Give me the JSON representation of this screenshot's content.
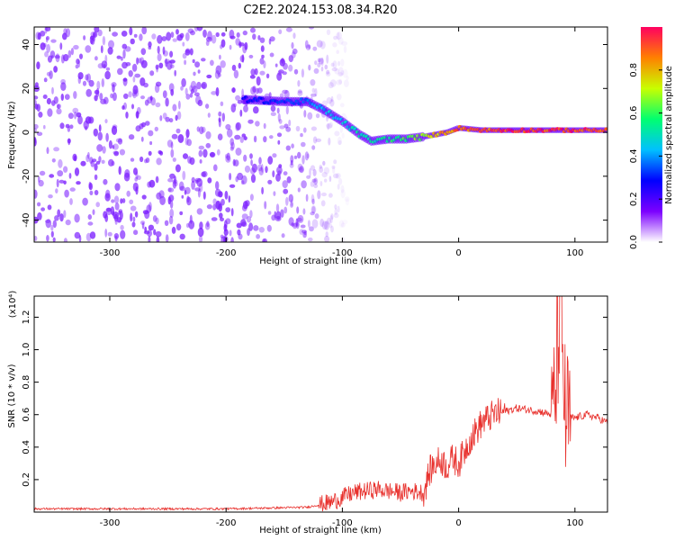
{
  "title": "C2E2.2024.153.08.34.R20",
  "chart_data": [
    {
      "type": "heatmap",
      "xlabel": "Height of straight line (km)",
      "ylabel": "Frequency (Hz)",
      "xlim": [
        -365,
        128
      ],
      "ylim": [
        -50,
        48
      ],
      "xticks": [
        -300,
        -200,
        -100,
        0,
        100
      ],
      "yticks": [
        -40,
        -20,
        0,
        20,
        40
      ],
      "colorbar": {
        "label": "Normalized spectral amplitude",
        "range": [
          0,
          1
        ],
        "ticks": [
          0.0,
          0.2,
          0.4,
          0.6,
          0.8
        ],
        "colors": [
          "#ffffff",
          "#7c00ff",
          "#0000ff",
          "#00c0ff",
          "#00ff70",
          "#c8ff00",
          "#ff8000",
          "#ff0060"
        ]
      },
      "signal_trace": {
        "height_km": [
          -185,
          -150,
          -130,
          -115,
          -100,
          -85,
          -75,
          -60,
          -45,
          -30,
          -10,
          0,
          20,
          40,
          60,
          80,
          90,
          110,
          128
        ],
        "frequency_hz": [
          15,
          14,
          14,
          10,
          5,
          -1,
          -4,
          -3,
          -3,
          -2,
          0,
          2,
          1,
          1,
          1,
          1,
          1,
          1,
          1
        ],
        "peak_amplitude": [
          0.3,
          0.35,
          0.4,
          0.45,
          0.5,
          0.55,
          0.55,
          0.6,
          0.65,
          0.75,
          0.9,
          0.95,
          0.95,
          1.0,
          1.0,
          1.0,
          1.0,
          1.0,
          1.0
        ]
      },
      "noise_region_km": [
        -365,
        -115
      ]
    },
    {
      "type": "line",
      "xlabel": "Height of straight line (km)",
      "ylabel": "SNR (10 * v/v)",
      "y_multiplier": "(x10⁴)",
      "xlim": [
        -365,
        128
      ],
      "ylim": [
        0,
        1.33
      ],
      "xticks": [
        -300,
        -200,
        -100,
        0,
        100
      ],
      "yticks": [
        0.2,
        0.4,
        0.6,
        0.8,
        1.0,
        1.2
      ],
      "series": [
        {
          "color": "#e8302c",
          "x": [
            -365,
            -300,
            -200,
            -130,
            -110,
            -100,
            -90,
            -80,
            -70,
            -60,
            -50,
            -40,
            -30,
            -25,
            -20,
            -15,
            -10,
            -5,
            0,
            10,
            20,
            30,
            40,
            50,
            60,
            70,
            80,
            83,
            85,
            88,
            90,
            92,
            95,
            100,
            110,
            120,
            128
          ],
          "y": [
            0.02,
            0.02,
            0.02,
            0.03,
            0.06,
            0.09,
            0.12,
            0.13,
            0.14,
            0.13,
            0.12,
            0.13,
            0.12,
            0.25,
            0.3,
            0.32,
            0.28,
            0.33,
            0.3,
            0.45,
            0.55,
            0.6,
            0.62,
            0.64,
            0.63,
            0.62,
            0.6,
            0.7,
            1.0,
            1.33,
            0.85,
            0.55,
            0.58,
            0.58,
            0.6,
            0.58,
            0.55
          ]
        }
      ]
    }
  ]
}
